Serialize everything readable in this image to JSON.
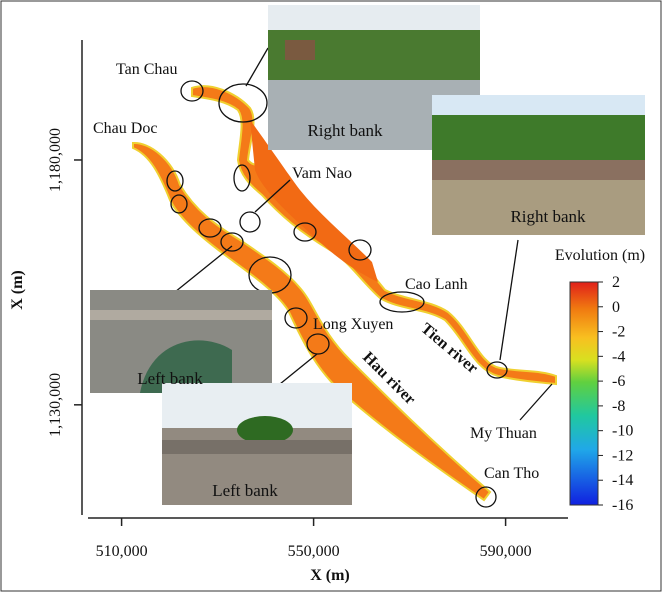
{
  "axes": {
    "xlabel": "X (m)",
    "ylabel": "X (m)",
    "xlim": [
      503000,
      603000
    ],
    "xticks": [
      {
        "value": 510000,
        "label": "510,000"
      },
      {
        "value": 550000,
        "label": "550,000"
      },
      {
        "value": 590000,
        "label": "590,000"
      }
    ],
    "ylim": [
      1107500,
      1204500
    ],
    "yticks": [
      {
        "value": 1130000,
        "label": "1,130,000"
      },
      {
        "value": 1180000,
        "label": "1,180,000"
      }
    ]
  },
  "places": {
    "tan_chau": "Tan Chau",
    "chau_doc": "Chau Doc",
    "vam_nao": "Vam Nao",
    "cao_lanh": "Cao Lanh",
    "long_xuyen": "Long Xuyen",
    "my_thuan": "My Thuan",
    "can_tho": "Can Tho"
  },
  "rivers": {
    "tien": "Tien river",
    "hau": "Hau river"
  },
  "photos": {
    "top": "Right bank",
    "right": "Right bank",
    "left": "Left bank",
    "bottom": "Left bank"
  },
  "colorbar": {
    "title": "Evolution (m)",
    "lim": [
      -16,
      2
    ],
    "ticks": [
      2,
      0,
      -2,
      -4,
      -6,
      -8,
      -10,
      -12,
      -14,
      -16
    ]
  }
}
